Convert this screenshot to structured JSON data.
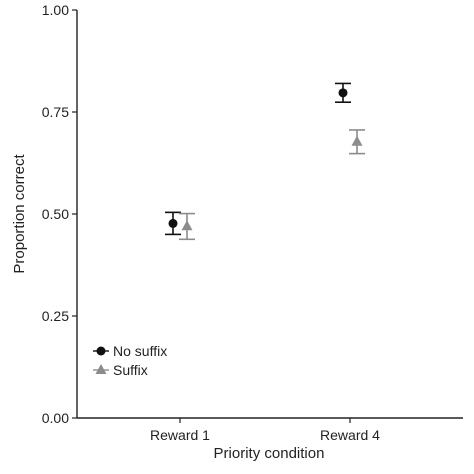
{
  "chart_data": {
    "type": "scatter",
    "title": "",
    "xlabel": "Priority condition",
    "ylabel": "Proportion correct",
    "categories": [
      "Reward 1",
      "Reward 4"
    ],
    "ylim": [
      0,
      1
    ],
    "yticks": [
      "0.00",
      "0.25",
      "0.50",
      "0.75",
      "1.00"
    ],
    "grid": false,
    "legend_position": "bottom-left",
    "series": [
      {
        "name": "No suffix",
        "marker": "circle",
        "color": "#111111",
        "values": [
          0.477,
          0.797
        ],
        "err_low": [
          0.45,
          0.774
        ],
        "err_high": [
          0.504,
          0.82
        ]
      },
      {
        "name": "Suffix",
        "marker": "triangle",
        "color": "#8c8c8c",
        "values": [
          0.47,
          0.677
        ],
        "err_low": [
          0.438,
          0.648
        ],
        "err_high": [
          0.501,
          0.706
        ]
      }
    ]
  }
}
